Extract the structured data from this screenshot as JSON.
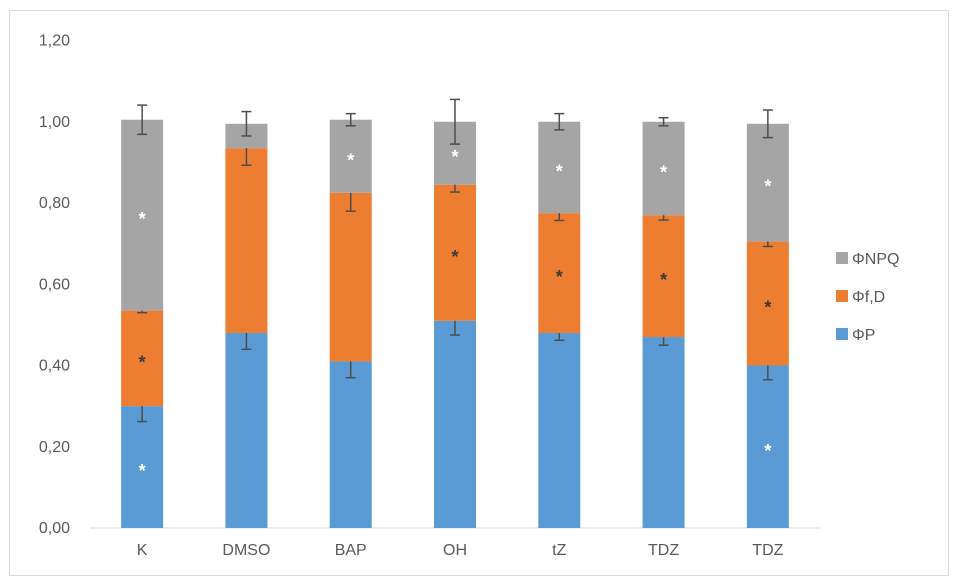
{
  "chart_data": {
    "type": "bar",
    "stacked": true,
    "categories": [
      "K",
      "DMSO",
      "BAP",
      "OH",
      "tZ",
      "TDZ",
      "TDZ"
    ],
    "ylim": [
      0,
      1.2
    ],
    "yticks": [
      "0,00",
      "0,20",
      "0,40",
      "0,60",
      "0,80",
      "1,00",
      "1,20"
    ],
    "grid": false,
    "legend_position": "right",
    "series": [
      {
        "name": "ΦP",
        "color": "#5b9bd5",
        "values": [
          0.3,
          0.48,
          0.41,
          0.51,
          0.48,
          0.47,
          0.4
        ],
        "errors": [
          0.038,
          0.04,
          0.04,
          0.035,
          0.018,
          0.02,
          0.035
        ],
        "stars": [
          "*",
          "",
          "",
          "",
          "",
          "",
          "*"
        ],
        "star_colors": [
          "#ffffff",
          "",
          "",
          "",
          "",
          "",
          "#ffffff"
        ]
      },
      {
        "name": "Φf,D",
        "color": "#ed7d31",
        "values": [
          0.235,
          0.455,
          0.415,
          0.335,
          0.295,
          0.3,
          0.305
        ],
        "errors": [
          0.005,
          0.042,
          0.045,
          0.018,
          0.018,
          0.012,
          0.012
        ],
        "stars": [
          "*",
          "",
          "",
          "*",
          "*",
          "*",
          "*"
        ],
        "star_colors": [
          "#3a3a3a",
          "",
          "",
          "#3a3a3a",
          "#3a3a3a",
          "#3a3a3a",
          "#3a3a3a"
        ]
      },
      {
        "name": "ΦNPQ",
        "color": "#a5a5a5",
        "values": [
          0.47,
          0.06,
          0.18,
          0.155,
          0.225,
          0.23,
          0.29
        ],
        "errors": [
          0.036,
          0.03,
          0.015,
          0.055,
          0.02,
          0.01,
          0.034
        ],
        "stars": [
          "*",
          "",
          "*",
          "*",
          "*",
          "*",
          "*"
        ],
        "star_colors": [
          "#ffffff",
          "",
          "#ffffff",
          "#ffffff",
          "#ffffff",
          "#ffffff",
          "#ffffff"
        ]
      }
    ]
  }
}
